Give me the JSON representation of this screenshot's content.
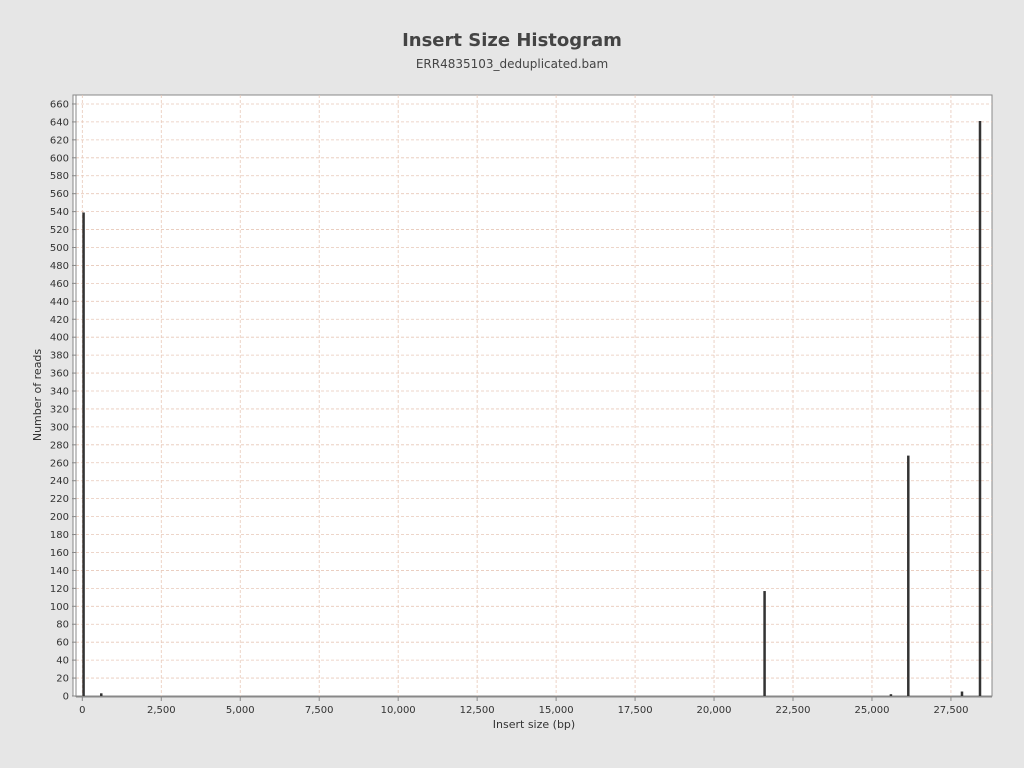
{
  "chart_data": {
    "type": "bar",
    "title": "Insert Size Histogram",
    "subtitle": "ERR4835103_deduplicated.bam",
    "xlabel": "Insert size (bp)",
    "ylabel": "Number of reads",
    "xlim": [
      -200,
      28800
    ],
    "ylim": [
      0,
      670
    ],
    "x_ticks": [
      0,
      2500,
      5000,
      7500,
      10000,
      12500,
      15000,
      17500,
      20000,
      22500,
      25000,
      27500
    ],
    "y_ticks": [
      0,
      20,
      40,
      60,
      80,
      100,
      120,
      140,
      160,
      180,
      200,
      220,
      240,
      260,
      280,
      300,
      320,
      340,
      360,
      380,
      400,
      420,
      440,
      460,
      480,
      500,
      520,
      540,
      560,
      580,
      600,
      620,
      640,
      660
    ],
    "grid": true,
    "legend": "none",
    "points": [
      {
        "x": 40,
        "y": 539
      },
      {
        "x": 600,
        "y": 3
      },
      {
        "x": 21600,
        "y": 117
      },
      {
        "x": 25600,
        "y": 2
      },
      {
        "x": 26150,
        "y": 268
      },
      {
        "x": 27850,
        "y": 5
      },
      {
        "x": 28420,
        "y": 641
      }
    ],
    "colors": {
      "bar": "#333333",
      "plot_background": "#ffffff",
      "page_background": "#e6e6e6",
      "grid_line": "#e8c8b8",
      "axis_line": "#888888"
    }
  }
}
